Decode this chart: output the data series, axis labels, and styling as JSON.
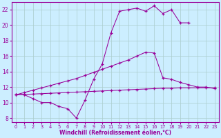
{
  "line1_x": [
    0,
    1,
    2,
    3,
    4,
    5,
    6,
    7,
    8,
    9,
    10,
    11,
    12,
    13,
    14,
    15,
    16,
    17,
    18,
    19,
    20
  ],
  "line1_y": [
    11,
    11,
    10.5,
    10,
    10,
    9.5,
    9.2,
    8,
    10.3,
    13,
    15,
    19,
    21.8,
    22,
    22.2,
    21.8,
    22.5,
    21.5,
    22,
    20.3,
    20.3
  ],
  "line2_x": [
    0,
    1,
    2,
    3,
    4,
    5,
    6,
    7,
    8,
    9,
    10,
    11,
    12,
    13,
    14,
    15,
    16,
    17,
    18,
    19,
    20,
    21,
    22,
    23
  ],
  "line2_y": [
    11,
    11.3,
    11.6,
    11.9,
    12.2,
    12.5,
    12.8,
    13.1,
    13.5,
    13.9,
    14.3,
    14.7,
    15.1,
    15.5,
    16.0,
    16.5,
    16.4,
    13.2,
    13.0,
    12.6,
    12.3,
    12.0,
    12.0,
    11.8
  ],
  "line3_x": [
    0,
    1,
    2,
    3,
    4,
    5,
    6,
    7,
    8,
    9,
    10,
    11,
    12,
    13,
    14,
    15,
    16,
    17,
    18,
    19,
    20,
    21,
    22,
    23
  ],
  "line3_y": [
    11,
    11.05,
    11.1,
    11.15,
    11.2,
    11.25,
    11.3,
    11.35,
    11.4,
    11.45,
    11.5,
    11.55,
    11.6,
    11.65,
    11.7,
    11.75,
    11.8,
    11.85,
    11.85,
    11.9,
    11.9,
    11.9,
    11.9,
    11.9
  ],
  "bg_color": "#cceeff",
  "grid_color": "#aacccc",
  "line_color": "#990099",
  "xlabel": "Windchill (Refroidissement éolien,°C)",
  "xlim": [
    -0.5,
    23.5
  ],
  "ylim": [
    7.5,
    23
  ],
  "yticks": [
    8,
    10,
    12,
    14,
    16,
    18,
    20,
    22
  ],
  "xticks": [
    0,
    1,
    2,
    3,
    4,
    5,
    6,
    7,
    8,
    9,
    10,
    11,
    12,
    13,
    14,
    15,
    16,
    17,
    18,
    19,
    20,
    21,
    22,
    23
  ]
}
